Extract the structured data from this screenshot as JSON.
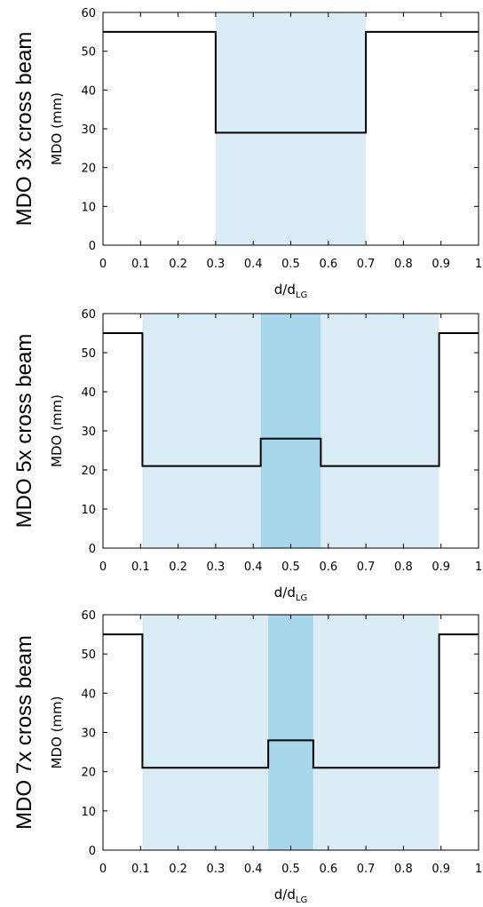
{
  "chart_data": [
    {
      "type": "line",
      "title": "",
      "side_label": "MDO 3x cross beam",
      "xlabel": "d/d",
      "xlabel_sub": "LG",
      "ylabel": "MDO (mm)",
      "xlim": [
        0,
        1
      ],
      "ylim": [
        0,
        60
      ],
      "xticks": [
        0,
        0.1,
        0.2,
        0.3,
        0.4,
        0.5,
        0.6,
        0.7,
        0.8,
        0.9,
        1
      ],
      "xtick_labels": [
        "0",
        "0.1",
        "0.2",
        "0.3",
        "0.4",
        "0.5",
        "0.6",
        "0.7",
        "0.8",
        "0.9",
        "1"
      ],
      "yticks": [
        0,
        10,
        20,
        30,
        40,
        50,
        60
      ],
      "ytick_labels": [
        "0",
        "10",
        "20",
        "30",
        "40",
        "50",
        "60"
      ],
      "grid": false,
      "shaded_regions": [
        {
          "x0": 0.3,
          "x1": 0.7,
          "color": "#daedf6"
        }
      ],
      "series": [
        {
          "x": [
            0,
            0.3,
            0.3,
            0.7,
            0.7,
            1
          ],
          "y": [
            55,
            55,
            29,
            29,
            55,
            55
          ],
          "color": "#000000"
        }
      ]
    },
    {
      "type": "line",
      "title": "",
      "side_label": "MDO 5x cross beam",
      "xlabel": "d/d",
      "xlabel_sub": "LG",
      "ylabel": "MDO (mm)",
      "xlim": [
        0,
        1
      ],
      "ylim": [
        0,
        60
      ],
      "xticks": [
        0,
        0.1,
        0.2,
        0.3,
        0.4,
        0.5,
        0.6,
        0.7,
        0.8,
        0.9,
        1
      ],
      "xtick_labels": [
        "0",
        "0.1",
        "0.2",
        "0.3",
        "0.4",
        "0.5",
        "0.6",
        "0.7",
        "0.8",
        "0.9",
        "1"
      ],
      "yticks": [
        0,
        10,
        20,
        30,
        40,
        50,
        60
      ],
      "ytick_labels": [
        "0",
        "10",
        "20",
        "30",
        "40",
        "50",
        "60"
      ],
      "grid": false,
      "shaded_regions": [
        {
          "x0": 0.105,
          "x1": 0.42,
          "color": "#daedf6"
        },
        {
          "x0": 0.42,
          "x1": 0.58,
          "color": "#a8d6ea"
        },
        {
          "x0": 0.58,
          "x1": 0.895,
          "color": "#daedf6"
        }
      ],
      "series": [
        {
          "x": [
            0,
            0.105,
            0.105,
            0.42,
            0.42,
            0.58,
            0.58,
            0.895,
            0.895,
            1
          ],
          "y": [
            55,
            55,
            21,
            21,
            28,
            28,
            21,
            21,
            55,
            55
          ],
          "color": "#000000"
        }
      ]
    },
    {
      "type": "line",
      "title": "",
      "side_label": "MDO 7x cross beam",
      "xlabel": "d/d",
      "xlabel_sub": "LG",
      "ylabel": "MDO (mm)",
      "xlim": [
        0,
        1
      ],
      "ylim": [
        0,
        60
      ],
      "xticks": [
        0,
        0.1,
        0.2,
        0.3,
        0.4,
        0.5,
        0.6,
        0.7,
        0.8,
        0.9,
        1
      ],
      "xtick_labels": [
        "0",
        "0.1",
        "0.2",
        "0.3",
        "0.4",
        "0.5",
        "0.6",
        "0.7",
        "0.8",
        "0.9",
        "1"
      ],
      "yticks": [
        0,
        10,
        20,
        30,
        40,
        50,
        60
      ],
      "ytick_labels": [
        "0",
        "10",
        "20",
        "30",
        "40",
        "50",
        "60"
      ],
      "grid": false,
      "shaded_regions": [
        {
          "x0": 0.105,
          "x1": 0.44,
          "color": "#daedf6"
        },
        {
          "x0": 0.44,
          "x1": 0.56,
          "color": "#a8d6ea"
        },
        {
          "x0": 0.56,
          "x1": 0.895,
          "color": "#daedf6"
        }
      ],
      "series": [
        {
          "x": [
            0,
            0.105,
            0.105,
            0.44,
            0.44,
            0.56,
            0.56,
            0.895,
            0.895,
            1
          ],
          "y": [
            55,
            55,
            21,
            21,
            28,
            28,
            21,
            21,
            55,
            55
          ],
          "color": "#000000"
        }
      ]
    }
  ]
}
